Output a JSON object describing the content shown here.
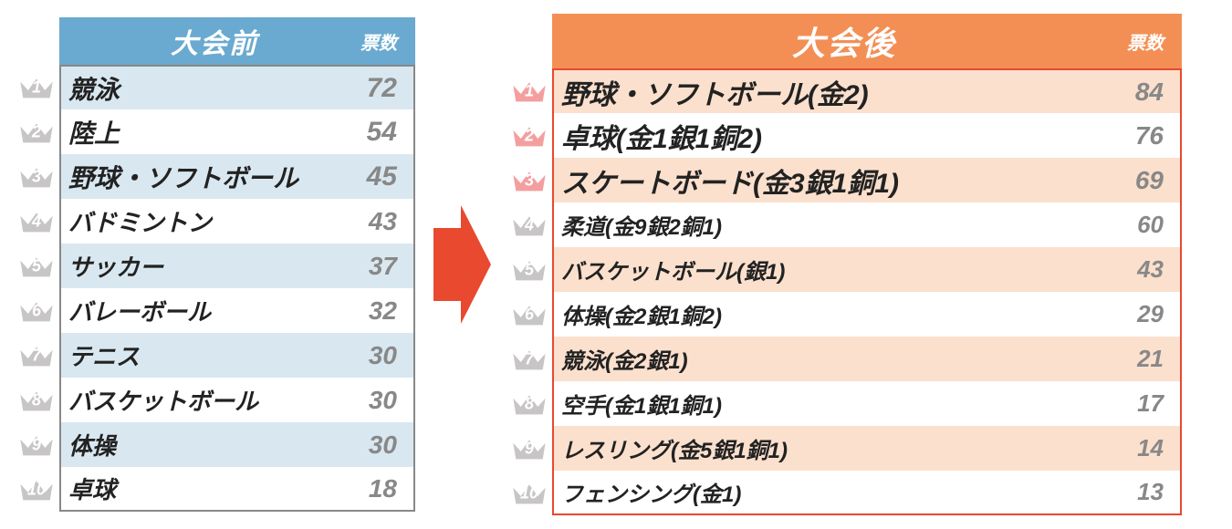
{
  "left": {
    "header_title": "大会前",
    "header_votes": "票数",
    "header_bg": "#6aa9d0",
    "border_color": "#888888",
    "stripe_color": "#d9e8f0",
    "items": [
      {
        "rank": 1,
        "name": "競泳",
        "votes": 72,
        "crown_fill": "#c7c5c5",
        "top3": true
      },
      {
        "rank": 2,
        "name": "陸上",
        "votes": 54,
        "crown_fill": "#c7c5c5",
        "top3": true
      },
      {
        "rank": 3,
        "name": "野球・ソフトボール",
        "votes": 45,
        "crown_fill": "#c7c5c5",
        "top3": true
      },
      {
        "rank": 4,
        "name": "バドミントン",
        "votes": 43,
        "crown_fill": "#c7c5c5",
        "top3": false
      },
      {
        "rank": 5,
        "name": "サッカー",
        "votes": 37,
        "crown_fill": "#c7c5c5",
        "top3": false
      },
      {
        "rank": 6,
        "name": "バレーボール",
        "votes": 32,
        "crown_fill": "#c7c5c5",
        "top3": false
      },
      {
        "rank": 7,
        "name": "テニス",
        "votes": 30,
        "crown_fill": "#c7c5c5",
        "top3": false
      },
      {
        "rank": 8,
        "name": "バスケットボール",
        "votes": 30,
        "crown_fill": "#c7c5c5",
        "top3": false
      },
      {
        "rank": 9,
        "name": "体操",
        "votes": 30,
        "crown_fill": "#c7c5c5",
        "top3": false
      },
      {
        "rank": 10,
        "name": "卓球",
        "votes": 18,
        "crown_fill": "#c7c5c5",
        "top3": false
      }
    ]
  },
  "right": {
    "header_title": "大会後",
    "header_votes": "票数",
    "header_bg": "#f38f55",
    "border_color": "#e8492f",
    "stripe_color": "#fbe0cd",
    "items": [
      {
        "rank": 1,
        "name": "野球・ソフトボール(金2)",
        "votes": 84,
        "crown_fill": "#f49f9f",
        "top3": true
      },
      {
        "rank": 2,
        "name": "卓球(金1銀1銅2)",
        "votes": 76,
        "crown_fill": "#f49f9f",
        "top3": true
      },
      {
        "rank": 3,
        "name": "スケートボード(金3銀1銅1)",
        "votes": 69,
        "crown_fill": "#f49f9f",
        "top3": true
      },
      {
        "rank": 4,
        "name": "柔道(金9銀2銅1)",
        "votes": 60,
        "crown_fill": "#c7c5c5",
        "top3": false
      },
      {
        "rank": 5,
        "name": "バスケットボール(銀1)",
        "votes": 43,
        "crown_fill": "#c7c5c5",
        "top3": false
      },
      {
        "rank": 6,
        "name": "体操(金2銀1銅2)",
        "votes": 29,
        "crown_fill": "#c7c5c5",
        "top3": false
      },
      {
        "rank": 7,
        "name": "競泳(金2銀1)",
        "votes": 21,
        "crown_fill": "#c7c5c5",
        "top3": false
      },
      {
        "rank": 8,
        "name": "空手(金1銀1銅1)",
        "votes": 17,
        "crown_fill": "#c7c5c5",
        "top3": false
      },
      {
        "rank": 9,
        "name": "レスリング(金5銀1銅1)",
        "votes": 14,
        "crown_fill": "#c7c5c5",
        "top3": false
      },
      {
        "rank": 10,
        "name": "フェンシング(金1)",
        "votes": 13,
        "crown_fill": "#c7c5c5",
        "top3": false
      }
    ]
  },
  "arrow_color": "#e8492f"
}
